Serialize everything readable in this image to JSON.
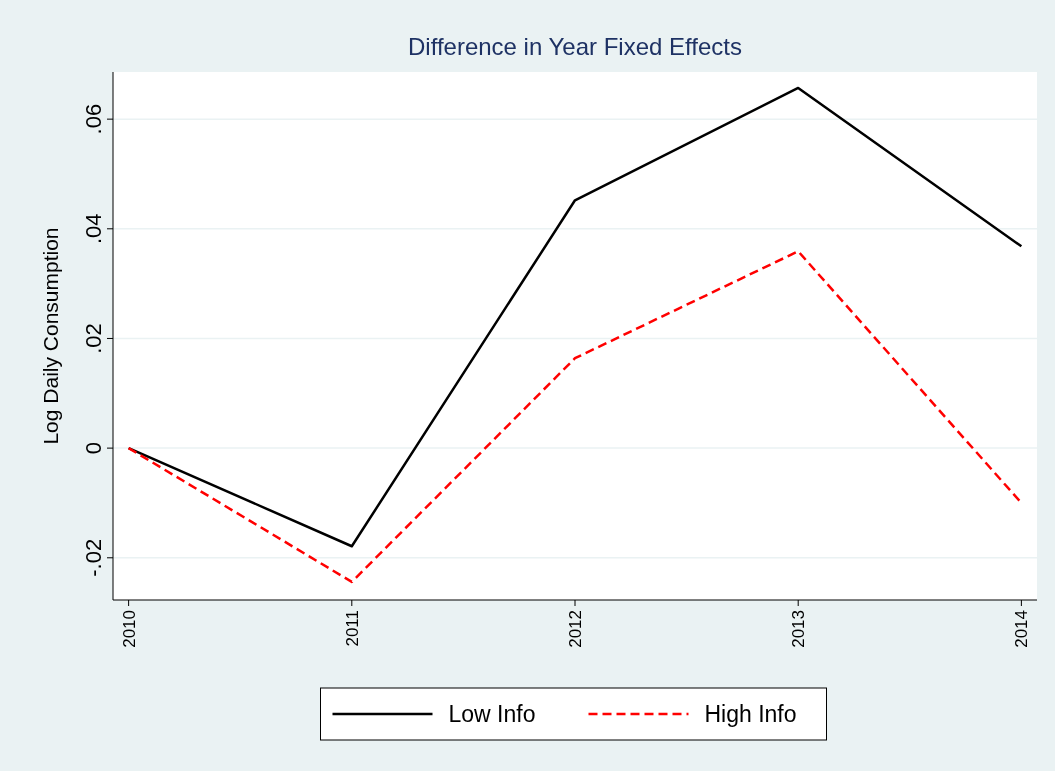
{
  "chart_data": {
    "type": "line",
    "title": "Difference in Year Fixed Effects",
    "ylabel": "Log Daily Consumption",
    "x": [
      2010,
      2011,
      2012,
      2013,
      2014
    ],
    "series": [
      {
        "name": "Low Info",
        "color": "#000000",
        "line_style": "solid",
        "values": [
          0,
          -0.0179,
          0.0452,
          0.0657,
          0.0368
        ]
      },
      {
        "name": "High Info",
        "color": "#ff0000",
        "line_style": "dashed",
        "values": [
          0,
          -0.0244,
          0.0164,
          0.0359,
          -0.01
        ]
      }
    ],
    "xlim": [
      2009.93,
      2014.07
    ],
    "xticks": [
      2010,
      2011,
      2012,
      2013,
      2014
    ],
    "ylim": [
      -0.0277,
      0.0686
    ],
    "yticks": [
      {
        "value": -0.02,
        "label": "-.02"
      },
      {
        "value": 0,
        "label": "0"
      },
      {
        "value": 0.02,
        "label": ".02"
      },
      {
        "value": 0.04,
        "label": ".04"
      },
      {
        "value": 0.06,
        "label": ".06"
      }
    ],
    "grid": "y",
    "legend": "bottom"
  }
}
